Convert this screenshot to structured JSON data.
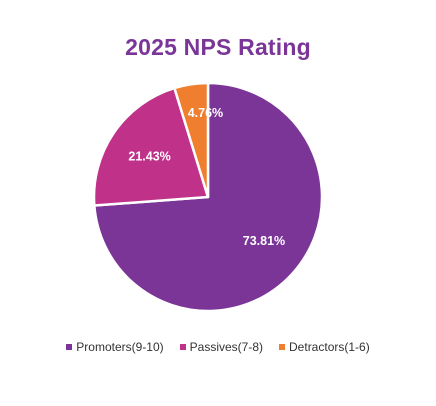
{
  "chart_data": {
    "type": "pie",
    "title": "2025 NPS Rating",
    "legend_position": "bottom",
    "slices": [
      {
        "name": "Promoters(9-10)",
        "value": 73.81,
        "label": "73.81%",
        "color": "#7b3596"
      },
      {
        "name": "Passives(7-8)",
        "value": 21.43,
        "label": "21.43%",
        "color": "#c0318a"
      },
      {
        "name": "Detractors(1-6)",
        "value": 4.76,
        "label": "4.76%",
        "color": "#f07e2f"
      }
    ]
  }
}
